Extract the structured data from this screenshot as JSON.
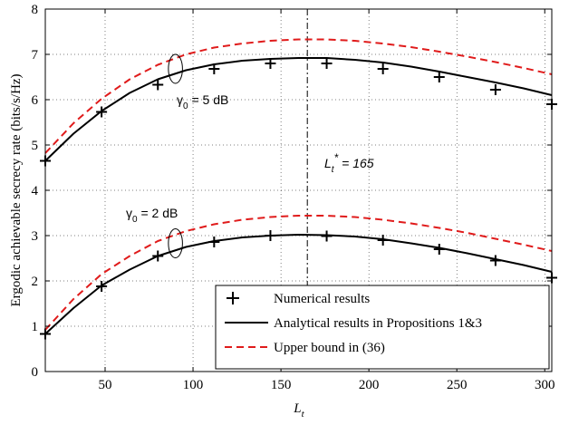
{
  "chart_data": {
    "type": "line",
    "xlabel": "L",
    "xlabel_sub": "t",
    "ylabel": "Ergodic achievable secrecy rate (bits/s/Hz)",
    "xlim": [
      16,
      304
    ],
    "ylim": [
      0,
      8
    ],
    "xticks": [
      50,
      100,
      150,
      200,
      250,
      300
    ],
    "yticks": [
      0,
      1,
      2,
      3,
      4,
      5,
      6,
      7,
      8
    ],
    "grid": true,
    "legend_position": "bottom-right",
    "vline_x": 165,
    "annotations": {
      "opt": {
        "pre": "L",
        "sub": "t",
        "sup": "*",
        "post": " = 165"
      },
      "g5": {
        "pre": "γ",
        "sub": "0",
        "post": " = 5 dB"
      },
      "g2": {
        "pre": "γ",
        "sub": "0",
        "post": " = 2 dB"
      }
    },
    "series": [
      {
        "name": "Numerical results",
        "style": "plus-markers",
        "color": "#000000",
        "groups": [
          {
            "x": [
              16,
              48,
              80,
              112,
              144,
              176,
              208,
              240,
              272,
              304
            ],
            "y": [
              4.65,
              5.73,
              6.33,
              6.68,
              6.8,
              6.8,
              6.68,
              6.5,
              6.22,
              5.9
            ]
          },
          {
            "x": [
              16,
              48,
              80,
              112,
              144,
              176,
              208,
              240,
              272,
              304
            ],
            "y": [
              0.83,
              1.88,
              2.55,
              2.86,
              3.0,
              2.99,
              2.9,
              2.7,
              2.45,
              2.07
            ]
          }
        ]
      },
      {
        "name": "Analytical results in Propositions 1&3",
        "style": "solid",
        "color": "#000000",
        "groups": [
          {
            "x": [
              16,
              32,
              48,
              64,
              80,
              96,
              112,
              128,
              144,
              160,
              176,
              192,
              208,
              224,
              240,
              256,
              272,
              288,
              304
            ],
            "y": [
              4.65,
              5.25,
              5.75,
              6.15,
              6.45,
              6.65,
              6.78,
              6.86,
              6.9,
              6.92,
              6.92,
              6.88,
              6.82,
              6.73,
              6.62,
              6.5,
              6.38,
              6.25,
              6.1
            ]
          },
          {
            "x": [
              16,
              32,
              48,
              64,
              80,
              96,
              112,
              128,
              144,
              160,
              176,
              192,
              208,
              224,
              240,
              256,
              272,
              288,
              304
            ],
            "y": [
              0.83,
              1.4,
              1.9,
              2.25,
              2.55,
              2.75,
              2.88,
              2.96,
              3.0,
              3.02,
              3.01,
              2.98,
              2.92,
              2.83,
              2.73,
              2.61,
              2.48,
              2.35,
              2.2
            ]
          }
        ]
      },
      {
        "name": "Upper bound in (36)",
        "style": "dashed",
        "color": "#e01b1b",
        "groups": [
          {
            "x": [
              16,
              32,
              48,
              64,
              80,
              96,
              112,
              128,
              144,
              160,
              176,
              192,
              208,
              224,
              240,
              256,
              272,
              288,
              304
            ],
            "y": [
              4.82,
              5.48,
              6.02,
              6.45,
              6.77,
              7.0,
              7.15,
              7.24,
              7.3,
              7.33,
              7.33,
              7.3,
              7.24,
              7.16,
              7.06,
              6.95,
              6.83,
              6.7,
              6.56
            ]
          },
          {
            "x": [
              16,
              32,
              48,
              64,
              80,
              96,
              112,
              128,
              144,
              160,
              176,
              192,
              208,
              224,
              240,
              256,
              272,
              288,
              304
            ],
            "y": [
              0.92,
              1.6,
              2.15,
              2.55,
              2.88,
              3.1,
              3.25,
              3.35,
              3.41,
              3.44,
              3.44,
              3.41,
              3.35,
              3.27,
              3.17,
              3.06,
              2.93,
              2.8,
              2.66
            ]
          }
        ]
      }
    ],
    "ellipses": [
      {
        "cx": 90,
        "cy": 6.68,
        "rx": 4,
        "ry": 0.32
      },
      {
        "cx": 90,
        "cy": 2.83,
        "rx": 4,
        "ry": 0.32
      }
    ]
  }
}
